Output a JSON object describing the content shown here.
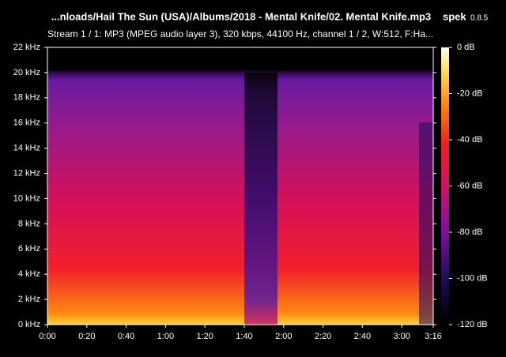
{
  "header": {
    "title": "...nloads/Hail The Sun (USA)/Albums/2018 - Mental Knife/02. Mental Knife.mp3",
    "app": "spek",
    "version": "0.8.5",
    "info": "Stream 1 / 1: MP3 (MPEG audio layer 3), 320 kbps, 44100 Hz, channel 1 / 2, W:512, F:Ha..."
  },
  "chart_data": {
    "type": "spectrogram",
    "xlim": [
      0,
      196
    ],
    "xticks": [
      {
        "value": 0,
        "label": "0:00"
      },
      {
        "value": 20,
        "label": "0:20"
      },
      {
        "value": 40,
        "label": "0:40"
      },
      {
        "value": 60,
        "label": "1:00"
      },
      {
        "value": 80,
        "label": "1:20"
      },
      {
        "value": 100,
        "label": "1:40"
      },
      {
        "value": 120,
        "label": "2:00"
      },
      {
        "value": 140,
        "label": "2:20"
      },
      {
        "value": 160,
        "label": "2:40"
      },
      {
        "value": 180,
        "label": "3:00"
      },
      {
        "value": 196,
        "label": "3:16"
      }
    ],
    "ylim": [
      0,
      22
    ],
    "yticks": [
      {
        "value": 0,
        "label": "0 kHz"
      },
      {
        "value": 2,
        "label": "2 kHz"
      },
      {
        "value": 4,
        "label": "4 kHz"
      },
      {
        "value": 6,
        "label": "6 kHz"
      },
      {
        "value": 8,
        "label": "8 kHz"
      },
      {
        "value": 10,
        "label": "10 kHz"
      },
      {
        "value": 12,
        "label": "12 kHz"
      },
      {
        "value": 14,
        "label": "14 kHz"
      },
      {
        "value": 16,
        "label": "16 kHz"
      },
      {
        "value": 18,
        "label": "18 kHz"
      },
      {
        "value": 20,
        "label": "20 kHz"
      },
      {
        "value": 22,
        "label": "22 kHz"
      }
    ],
    "colorbar": {
      "lim": [
        -120,
        0
      ],
      "ticks": [
        {
          "value": 0,
          "label": "0 dB"
        },
        {
          "value": -20,
          "label": "-20 dB"
        },
        {
          "value": -40,
          "label": "-40 dB"
        },
        {
          "value": -60,
          "label": "-60 dB"
        },
        {
          "value": -80,
          "label": "-80 dB"
        },
        {
          "value": -100,
          "label": "-100 dB"
        },
        {
          "value": -120,
          "label": "-120 dB"
        }
      ]
    }
  }
}
